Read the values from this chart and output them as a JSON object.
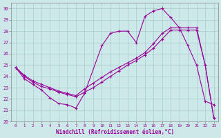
{
  "xlabel": "Windchill (Refroidissement éolien,°C)",
  "xlim": [
    -0.5,
    23.5
  ],
  "ylim": [
    20,
    30.5
  ],
  "yticks": [
    20,
    21,
    22,
    23,
    24,
    25,
    26,
    27,
    28,
    29,
    30
  ],
  "xticks": [
    0,
    1,
    2,
    3,
    4,
    5,
    6,
    7,
    8,
    9,
    10,
    11,
    12,
    13,
    14,
    15,
    16,
    17,
    18,
    19,
    20,
    21,
    22,
    23
  ],
  "bg_color": "#cce8e8",
  "grid_color": "#aacccc",
  "line_color": "#990099",
  "line1_x": [
    0,
    1,
    2,
    3,
    4,
    5,
    6,
    7,
    8,
    10,
    11,
    12,
    13,
    14,
    15,
    16,
    17,
    18,
    19,
    20,
    21,
    22,
    23
  ],
  "line1_y": [
    24.8,
    23.8,
    23.3,
    22.8,
    22.1,
    21.6,
    21.5,
    21.2,
    22.5,
    26.7,
    27.8,
    28.0,
    28.0,
    27.0,
    29.3,
    29.8,
    30.0,
    29.2,
    28.3,
    26.7,
    25.0,
    21.8,
    21.5
  ],
  "line2_x": [
    0,
    1,
    2,
    3,
    4,
    5,
    6,
    7,
    8,
    9,
    10,
    11,
    12,
    13,
    14,
    15,
    16,
    17,
    18,
    19,
    20,
    21,
    22,
    23
  ],
  "line2_y": [
    24.8,
    24.0,
    23.5,
    23.1,
    22.9,
    22.6,
    22.4,
    22.2,
    22.6,
    23.0,
    23.5,
    24.0,
    24.5,
    25.0,
    25.4,
    25.9,
    26.5,
    27.3,
    28.1,
    28.1,
    28.1,
    28.1,
    25.0,
    20.3
  ],
  "line3_x": [
    0,
    1,
    2,
    3,
    4,
    5,
    6,
    7,
    8,
    9,
    10,
    11,
    12,
    13,
    14,
    15,
    16,
    17,
    18,
    19,
    20,
    21,
    22,
    23
  ],
  "line3_y": [
    24.8,
    24.1,
    23.6,
    23.3,
    23.0,
    22.7,
    22.5,
    22.3,
    22.9,
    23.4,
    23.9,
    24.4,
    24.8,
    25.2,
    25.6,
    26.1,
    26.9,
    27.8,
    28.3,
    28.3,
    28.3,
    28.3,
    25.0,
    20.3
  ]
}
